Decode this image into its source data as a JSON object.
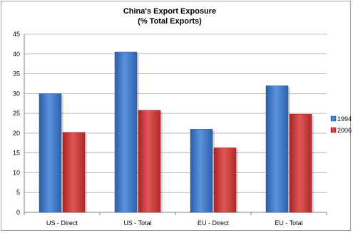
{
  "chart_data": {
    "type": "bar",
    "title": "China's Export Exposure",
    "subtitle": "(% Total Exports)",
    "xlabel": "",
    "ylabel": "",
    "categories": [
      "US - Direct",
      "US - Total",
      "EU - Direct",
      "EU - Total"
    ],
    "series": [
      {
        "name": "1994",
        "values": [
          30,
          40.5,
          21,
          32
        ],
        "color": "#3a74c8"
      },
      {
        "name": "2006",
        "values": [
          20.2,
          25.8,
          16.3,
          24.8
        ],
        "color": "#cc3333"
      }
    ],
    "ylim": [
      0,
      45
    ],
    "yticks": [
      0,
      5,
      10,
      15,
      20,
      25,
      30,
      35,
      40,
      45
    ],
    "grid": true,
    "legend": "right"
  }
}
